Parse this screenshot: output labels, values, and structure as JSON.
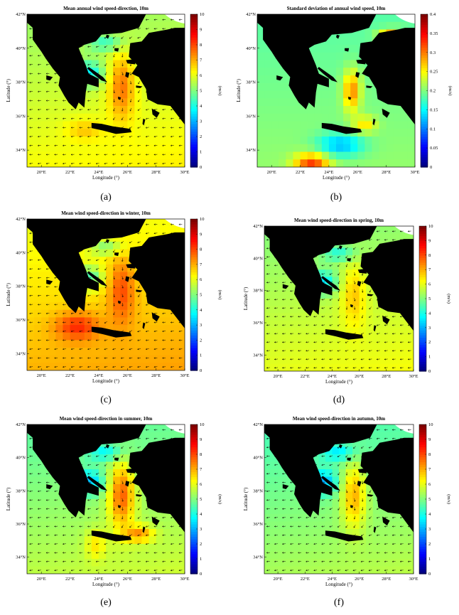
{
  "panels": [
    {
      "id": "a",
      "title": "Mean annual wind speed-direction, 10m",
      "caption": "(a)",
      "cmax": 10,
      "cticks": [
        "0",
        "1",
        "2",
        "3",
        "4",
        "5",
        "6",
        "7",
        "8",
        "9",
        "10"
      ],
      "unit": "(m/s)",
      "scheme": "annual"
    },
    {
      "id": "b",
      "title": "Standard deviation of annual wind speed, 10m",
      "caption": "(b)",
      "cmax": 0.4,
      "cticks": [
        "0",
        "0.05",
        "0.1",
        "0.15",
        "0.2",
        "0.25",
        "0.3",
        "0.35",
        "0.4"
      ],
      "unit": "(m/s)",
      "scheme": "std"
    },
    {
      "id": "c",
      "title": "Mean wind speed-direction in winter, 10m",
      "caption": "(c)",
      "cmax": 10,
      "cticks": [
        "0",
        "1",
        "2",
        "3",
        "4",
        "5",
        "6",
        "7",
        "8",
        "9",
        "10"
      ],
      "unit": "(m/s)",
      "scheme": "winter"
    },
    {
      "id": "d",
      "title": "Mean wind speed-direction in spring, 10m",
      "caption": "(d)",
      "cmax": 10,
      "cticks": [
        "0",
        "1",
        "2",
        "3",
        "4",
        "5",
        "6",
        "7",
        "8",
        "9",
        "10"
      ],
      "unit": "(m/s)",
      "scheme": "spring"
    },
    {
      "id": "e",
      "title": "Mean wind speed-direction in summer, 10m",
      "caption": "(e)",
      "cmax": 10,
      "cticks": [
        "0",
        "1",
        "2",
        "3",
        "4",
        "5",
        "6",
        "7",
        "8",
        "9",
        "10"
      ],
      "unit": "(m/s)",
      "scheme": "summer"
    },
    {
      "id": "f",
      "title": "Mean wind speed-direction in autumn, 10m",
      "caption": "(f)",
      "cmax": 10,
      "cticks": [
        "0",
        "1",
        "2",
        "3",
        "4",
        "5",
        "6",
        "7",
        "8",
        "9",
        "10"
      ],
      "unit": "(m/s)",
      "scheme": "autumn"
    }
  ],
  "axes": {
    "xlabel": "Longitude (°)",
    "ylabel": "Latitude (°)",
    "xticks": [
      "20°E",
      "22°E",
      "24°E",
      "26°E",
      "28°E",
      "30°E"
    ],
    "yticks": [
      "34°N",
      "36°N",
      "38°N",
      "40°N",
      "42°N"
    ],
    "xlim": [
      19,
      30
    ],
    "ylim": [
      33,
      42
    ]
  },
  "colors": {
    "land": "#000000",
    "colormap": [
      "#00007f",
      "#0000ff",
      "#007fff",
      "#00ffff",
      "#7fff7f",
      "#ffff00",
      "#ff7f00",
      "#ff0000",
      "#7f0000"
    ]
  }
}
